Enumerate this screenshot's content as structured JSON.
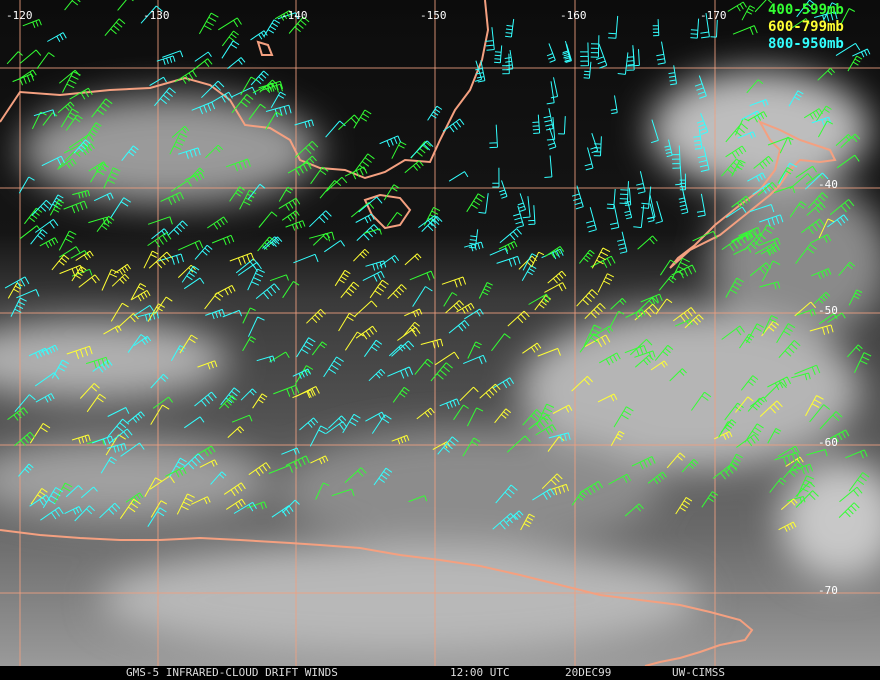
{
  "grid": {
    "longitude_labels": [
      "-120",
      "-130",
      "-140",
      "-150",
      "-160",
      "-170"
    ],
    "latitude_labels": [
      "-40",
      "-50",
      "-60",
      "-70"
    ]
  },
  "legend": [
    "400-599mb",
    "600-799mb",
    "800-950mb"
  ],
  "footer": {
    "product": "GMS-5 INFRARED-CLOUD DRIFT WINDS",
    "time": "12:00 UTC",
    "date": "20DEC99",
    "source": "UW-CIMSS"
  }
}
